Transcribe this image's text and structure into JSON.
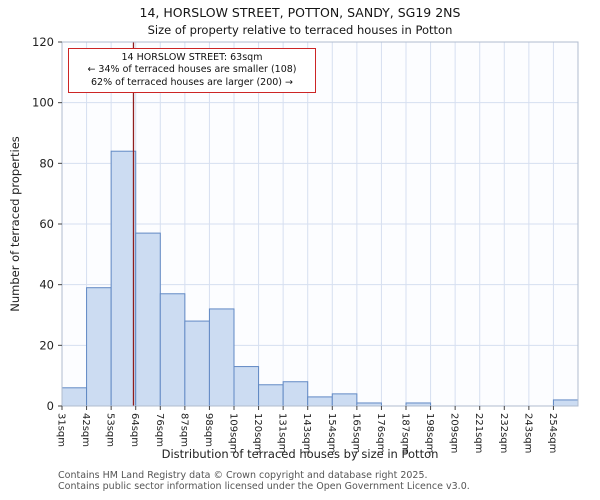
{
  "chart_data": {
    "type": "bar",
    "title": "14, HORSLOW STREET, POTTON, SANDY, SG19 2NS",
    "subtitle": "Size of property relative to terraced houses in Potton",
    "xlabel": "Distribution of terraced houses by size in Potton",
    "ylabel": "Number of terraced properties",
    "ylim": [
      0,
      120
    ],
    "yticks": [
      0,
      20,
      40,
      60,
      80,
      100,
      120
    ],
    "grid": true,
    "legend": false,
    "categories": [
      "31sqm",
      "42sqm",
      "53sqm",
      "64sqm",
      "76sqm",
      "87sqm",
      "98sqm",
      "109sqm",
      "120sqm",
      "131sqm",
      "143sqm",
      "154sqm",
      "165sqm",
      "176sqm",
      "187sqm",
      "198sqm",
      "209sqm",
      "221sqm",
      "232sqm",
      "243sqm",
      "254sqm"
    ],
    "values": [
      6,
      39,
      84,
      57,
      37,
      28,
      32,
      13,
      7,
      8,
      3,
      4,
      1,
      0,
      1,
      0,
      0,
      0,
      0,
      0,
      2
    ],
    "marker": {
      "value_sqm": 63,
      "smaller_pct": 34,
      "smaller_count": 108,
      "larger_pct": 62,
      "larger_count": 200
    },
    "annotation": {
      "line1": "14 HORSLOW STREET: 63sqm",
      "line2": "← 34% of terraced houses are smaller (108)",
      "line3": "62% of terraced houses are larger (200) →"
    },
    "colors": {
      "plot_bg": "#fcfdff",
      "grid": "#d6dff0",
      "bar_fill": "#ccdcf2",
      "bar_stroke": "#6189c4",
      "spine": "#b0bccf",
      "marker_line": "#8f1d1d",
      "tick_text": "#222222",
      "annotation_border": "#cc2525"
    }
  },
  "footer": {
    "line1": "Contains HM Land Registry data © Crown copyright and database right 2025.",
    "line2": "Contains public sector information licensed under the Open Government Licence v3.0."
  }
}
